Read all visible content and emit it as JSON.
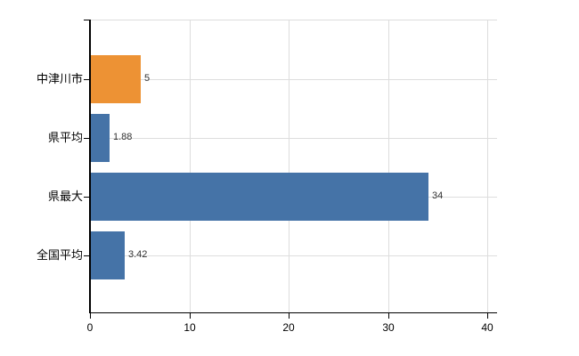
{
  "chart_data": {
    "type": "bar",
    "orientation": "horizontal",
    "title": "",
    "xlabel": "",
    "ylabel": "",
    "categories": [
      "中津川市",
      "県平均",
      "県最大",
      "全国平均"
    ],
    "values": [
      5,
      1.88,
      34,
      3.42
    ],
    "value_labels": [
      "5",
      "1.88",
      "34",
      "3.42"
    ],
    "bar_colors": [
      "#ED9234",
      "#4573A7",
      "#4573A7",
      "#4573A7"
    ],
    "x_ticks": [
      0,
      10,
      20,
      30,
      40
    ],
    "x_tick_labels": [
      "0",
      "10",
      "20",
      "30",
      "40"
    ],
    "xlim": [
      0,
      41
    ],
    "grid": true,
    "legend": "none",
    "style": {
      "grid_color": "#dddddd",
      "axis_color": "#000000",
      "category_label_color": "#000000",
      "value_label_color": "#333333",
      "background_color": "#ffffff"
    }
  }
}
